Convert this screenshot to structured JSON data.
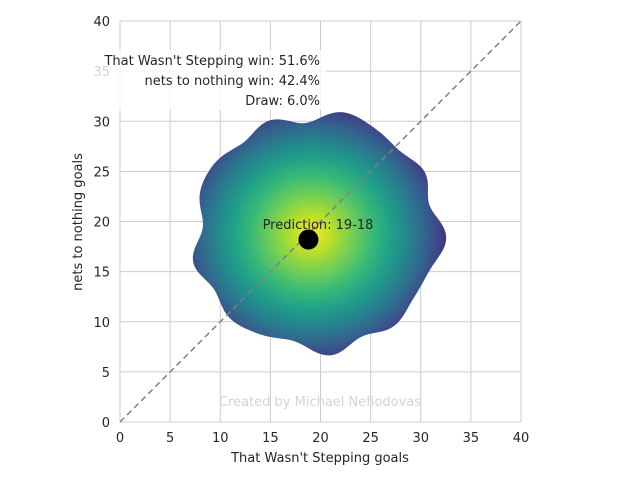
{
  "chart_data": {
    "type": "heatmap",
    "xlabel": "That Wasn't Stepping goals",
    "ylabel": "nets to nothing goals",
    "xlim": [
      0,
      40
    ],
    "ylim": [
      0,
      40
    ],
    "xticks": [
      0,
      5,
      10,
      15,
      20,
      25,
      30,
      35,
      40
    ],
    "yticks": [
      0,
      5,
      10,
      15,
      20,
      25,
      30,
      35,
      40
    ],
    "grid": true,
    "colormap": "viridis",
    "density_center": {
      "x": 18.8,
      "y": 18.2
    },
    "density_extent": {
      "x": [
        7.5,
        31.8
      ],
      "y": [
        7.3,
        30.6
      ]
    },
    "diagonal_line": {
      "from": [
        0,
        0
      ],
      "to": [
        40,
        40
      ],
      "style": "dashed",
      "color": "#808080"
    },
    "prediction_point": {
      "x": 18.8,
      "y": 18.2
    },
    "prediction_label": "Prediction: 19-18",
    "probabilities": [
      "That Wasn't Stepping win: 51.6%",
      "nets to nothing win: 42.4%",
      "Draw: 6.0%"
    ],
    "credit": "Created by Michael Nefiodovas"
  }
}
